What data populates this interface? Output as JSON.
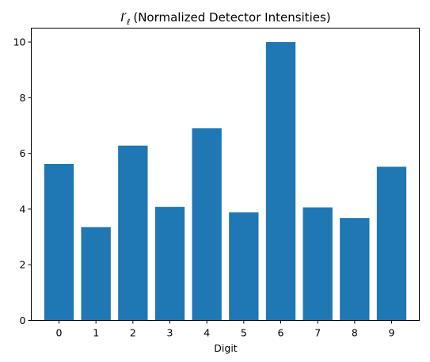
{
  "chart_data": {
    "type": "bar",
    "title_prefix": "I′",
    "title_sub": "ℓ",
    "title_rest": "(Normalized Detector Intensities)",
    "xlabel": "Digit",
    "ylabel": "",
    "categories": [
      "0",
      "1",
      "2",
      "3",
      "4",
      "5",
      "6",
      "7",
      "8",
      "9"
    ],
    "values": [
      5.62,
      3.35,
      6.28,
      4.08,
      6.9,
      3.88,
      10.0,
      4.06,
      3.68,
      5.52
    ],
    "ylim": [
      0,
      10.5
    ],
    "yticks": [
      0,
      2,
      4,
      6,
      8,
      10
    ],
    "grid": false,
    "bar_color": "#1f77b4"
  }
}
